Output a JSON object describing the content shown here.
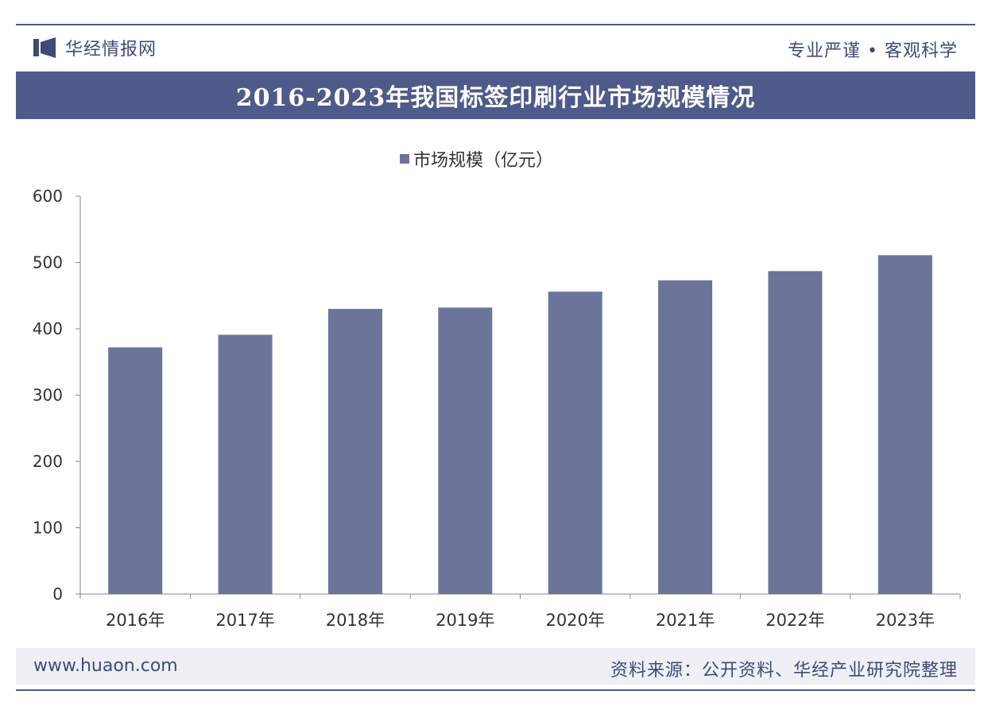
{
  "header": {
    "brand_name": "华经情报网",
    "slogan": "专业严谨 • 客观科学"
  },
  "footer": {
    "url": "www.huaon.com",
    "source": "资料来源：公开资料、华经产业研究院整理"
  },
  "colors": {
    "accent": "#4e5a8a",
    "bar": "#6b7599",
    "axis": "#888888"
  },
  "chart_data": {
    "type": "bar",
    "title": "2016-2023年我国标签印刷行业市场规模情况",
    "categories": [
      "2016年",
      "2017年",
      "2018年",
      "2019年",
      "2020年",
      "2021年",
      "2022年",
      "2023年"
    ],
    "series": [
      {
        "name": "市场规模（亿元）",
        "values": [
          372,
          391,
          430,
          432,
          456,
          473,
          487,
          511
        ]
      }
    ],
    "ylim": [
      0,
      600
    ],
    "yticks": [
      0,
      100,
      200,
      300,
      400,
      500,
      600
    ],
    "xlabel": "",
    "ylabel": "",
    "legend_position": "top-center",
    "grid": false
  }
}
